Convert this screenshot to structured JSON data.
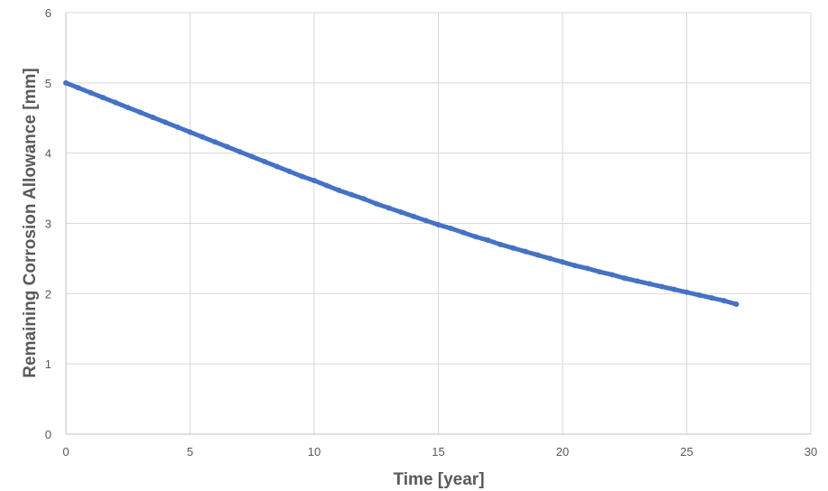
{
  "chart_data": {
    "type": "scatter",
    "title": "",
    "xlabel": "Time [year]",
    "ylabel": "Remaining Corrosion Allowance [mm]",
    "xlim": [
      0,
      30
    ],
    "ylim": [
      0,
      6
    ],
    "xticks": [
      0,
      5,
      10,
      15,
      20,
      25,
      30
    ],
    "yticks": [
      0,
      1,
      2,
      3,
      4,
      5,
      6
    ],
    "grid": true,
    "legend": "none",
    "marker_color": "#4472c4",
    "series": [
      {
        "x": [
          0,
          0.5,
          1,
          1.5,
          2,
          2.5,
          3,
          3.5,
          4,
          4.5,
          5,
          5.5,
          6,
          6.5,
          7,
          7.5,
          8,
          8.5,
          9,
          9.5,
          10,
          10.5,
          11,
          11.5,
          12,
          12.5,
          13,
          13.5,
          14,
          14.5,
          15,
          15.5,
          16,
          16.5,
          17,
          17.5,
          18,
          18.5,
          19,
          19.5,
          20,
          20.5,
          21,
          21.5,
          22,
          22.5,
          23,
          23.5,
          24,
          24.5,
          25,
          25.5,
          26,
          26.5,
          27
        ],
        "y": [
          5.0,
          4.93,
          4.86,
          4.79,
          4.72,
          4.65,
          4.58,
          4.51,
          4.44,
          4.37,
          4.3,
          4.23,
          4.16,
          4.09,
          4.02,
          3.95,
          3.88,
          3.81,
          3.74,
          3.67,
          3.61,
          3.54,
          3.47,
          3.41,
          3.35,
          3.28,
          3.22,
          3.16,
          3.1,
          3.04,
          2.98,
          2.93,
          2.87,
          2.81,
          2.76,
          2.7,
          2.65,
          2.6,
          2.55,
          2.5,
          2.45,
          2.4,
          2.36,
          2.31,
          2.27,
          2.22,
          2.18,
          2.14,
          2.1,
          2.06,
          2.02,
          1.98,
          1.94,
          1.9,
          1.85
        ]
      }
    ]
  }
}
